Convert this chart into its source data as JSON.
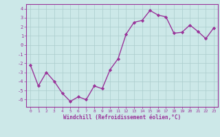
{
  "x": [
    0,
    1,
    2,
    3,
    4,
    5,
    6,
    7,
    8,
    9,
    10,
    11,
    12,
    13,
    14,
    15,
    16,
    17,
    18,
    19,
    20,
    21,
    22,
    23
  ],
  "y": [
    -2.2,
    -4.5,
    -3.0,
    -4.0,
    -5.3,
    -6.2,
    -5.7,
    -6.0,
    -4.5,
    -4.8,
    -2.7,
    -1.5,
    1.2,
    2.5,
    2.7,
    3.8,
    3.3,
    3.1,
    1.3,
    1.4,
    2.2,
    1.5,
    0.7,
    1.9
  ],
  "line_color": "#993399",
  "marker": "D",
  "marker_size": 2.2,
  "bg_color": "#cce8e8",
  "grid_color": "#aacccc",
  "xlabel": "Windchill (Refroidissement éolien,°C)",
  "tick_color": "#993399",
  "ylim": [
    -6.8,
    4.5
  ],
  "xlim": [
    -0.5,
    23.5
  ],
  "yticks": [
    -6,
    -5,
    -4,
    -3,
    -2,
    -1,
    0,
    1,
    2,
    3,
    4
  ],
  "xticks": [
    0,
    1,
    2,
    3,
    4,
    5,
    6,
    7,
    8,
    9,
    10,
    11,
    12,
    13,
    14,
    15,
    16,
    17,
    18,
    19,
    20,
    21,
    22,
    23
  ],
  "line_width": 1.0,
  "spine_color": "#993399",
  "fig_bg_color": "#cce8e8"
}
